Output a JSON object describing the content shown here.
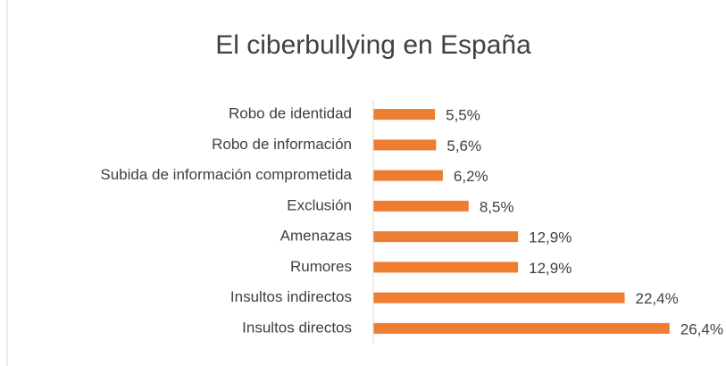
{
  "chart_data": {
    "type": "bar",
    "orientation": "horizontal",
    "title": "El ciberbullying en España",
    "categories": [
      "Robo de identidad",
      "Robo de información",
      "Subida de información comprometida",
      "Exclusión",
      "Amenazas",
      "Rumores",
      "Insultos indirectos",
      "Insultos directos"
    ],
    "values": [
      5.5,
      5.6,
      6.2,
      8.5,
      12.9,
      12.9,
      22.4,
      26.4
    ],
    "value_labels": [
      "5,5%",
      "5,6%",
      "6,2%",
      "8,5%",
      "12,9%",
      "12,9%",
      "22,4%",
      "26,4%"
    ],
    "color": "#ed7d31",
    "xlim": [
      0,
      30
    ]
  }
}
